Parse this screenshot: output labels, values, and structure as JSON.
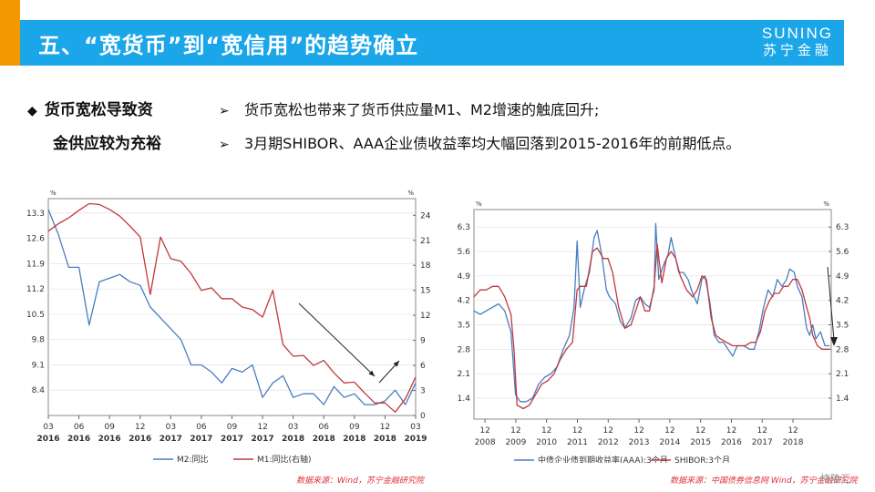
{
  "header": {
    "title": "五、“宽货币”到“宽信用”的趋势确立",
    "logo_en": "SUNING",
    "logo_cn": "苏宁金融"
  },
  "section": {
    "bullet": "◆",
    "title_line1": "货币宽松导致资",
    "title_line2": "金供应较为充裕"
  },
  "bullets": [
    {
      "arrow": "➢",
      "text": "货币宽松也带来了货币供应量M1、M2增速的触底回升;"
    },
    {
      "arrow": "➢",
      "text": "3月期SHIBOR、AAA企业债收益率均大幅回落到2015-2016年的前期低点。"
    }
  ],
  "chart_data": [
    {
      "type": "line",
      "x": [
        "03 2016",
        "04 2016",
        "05 2016",
        "06 2016",
        "07 2016",
        "08 2016",
        "09 2016",
        "10 2016",
        "11 2016",
        "12 2016",
        "01 2017",
        "02 2017",
        "03 2017",
        "04 2017",
        "05 2017",
        "06 2017",
        "07 2017",
        "08 2017",
        "09 2017",
        "10 2017",
        "11 2017",
        "12 2017",
        "01 2018",
        "02 2018",
        "03 2018",
        "04 2018",
        "05 2018",
        "06 2018",
        "07 2018",
        "08 2018",
        "09 2018",
        "10 2018",
        "11 2018",
        "12 2018",
        "01 2019",
        "02 2019",
        "03 2019"
      ],
      "x_tick_labels": [
        [
          "03",
          "2016"
        ],
        [
          "06",
          "2016"
        ],
        [
          "09",
          "2016"
        ],
        [
          "12",
          "2016"
        ],
        [
          "03",
          "2017"
        ],
        [
          "06",
          "2017"
        ],
        [
          "09",
          "2017"
        ],
        [
          "12",
          "2017"
        ],
        [
          "03",
          "2018"
        ],
        [
          "06",
          "2018"
        ],
        [
          "09",
          "2018"
        ],
        [
          "12",
          "2018"
        ],
        [
          "03",
          "2019"
        ]
      ],
      "series": [
        {
          "name": "M2:同比",
          "axis": "left",
          "color": "#4a7dc0",
          "values": [
            13.4,
            12.7,
            11.8,
            11.8,
            10.2,
            11.4,
            11.5,
            11.6,
            11.4,
            11.3,
            10.7,
            10.4,
            10.1,
            9.8,
            9.1,
            9.1,
            8.9,
            8.6,
            9.0,
            8.9,
            9.1,
            8.2,
            8.6,
            8.8,
            8.2,
            8.3,
            8.3,
            8.0,
            8.5,
            8.2,
            8.3,
            8.0,
            8.0,
            8.1,
            8.4,
            8.0,
            8.6
          ]
        },
        {
          "name": "M1:同比(右轴)",
          "axis": "right",
          "color": "#c0383a",
          "values": [
            22.1,
            23.0,
            23.7,
            24.6,
            25.4,
            25.3,
            24.7,
            23.9,
            22.7,
            21.4,
            14.5,
            21.4,
            18.8,
            18.5,
            17.0,
            15.0,
            15.3,
            14.0,
            14.0,
            13.0,
            12.7,
            11.8,
            15.0,
            8.5,
            7.1,
            7.2,
            6.0,
            6.6,
            5.1,
            3.9,
            4.0,
            2.7,
            1.5,
            1.5,
            0.4,
            2.0,
            4.6
          ]
        }
      ],
      "y_left": {
        "unit": "%",
        "ticks": [
          8.4,
          9.1,
          9.8,
          10.5,
          11.2,
          11.9,
          12.6,
          13.3
        ],
        "range": [
          7.7,
          13.7
        ]
      },
      "y_right": {
        "unit": "%",
        "ticks": [
          0,
          3,
          6,
          9,
          12,
          15,
          18,
          21,
          24
        ],
        "range": [
          0,
          26
        ]
      },
      "source": "数据来源：Wind，苏宁金融研究院"
    },
    {
      "type": "line",
      "x_range": [
        2007.6,
        2019.2
      ],
      "x_tick_labels": [
        [
          "12",
          "2008"
        ],
        [
          "12",
          "2009"
        ],
        [
          "12",
          "2010"
        ],
        [
          "12",
          "2011"
        ],
        [
          "12",
          "2012"
        ],
        [
          "12",
          "2013"
        ],
        [
          "12",
          "2014"
        ],
        [
          "12",
          "2015"
        ],
        [
          "12",
          "2016"
        ],
        [
          "12",
          "2017"
        ],
        [
          "12",
          "2018"
        ]
      ],
      "series": [
        {
          "name": "中债企业债到期收益率(AAA):3个月",
          "color": "#4a7dc0",
          "points": [
            [
              2007.6,
              3.9
            ],
            [
              2007.8,
              3.8
            ],
            [
              2008.0,
              3.9
            ],
            [
              2008.2,
              4.0
            ],
            [
              2008.4,
              4.1
            ],
            [
              2008.6,
              3.9
            ],
            [
              2008.8,
              3.3
            ],
            [
              2008.95,
              1.5
            ],
            [
              2009.1,
              1.3
            ],
            [
              2009.3,
              1.3
            ],
            [
              2009.5,
              1.4
            ],
            [
              2009.7,
              1.8
            ],
            [
              2009.9,
              2.0
            ],
            [
              2010.1,
              2.1
            ],
            [
              2010.3,
              2.3
            ],
            [
              2010.5,
              2.8
            ],
            [
              2010.7,
              3.2
            ],
            [
              2010.85,
              4.0
            ],
            [
              2010.95,
              5.9
            ],
            [
              2011.05,
              4.0
            ],
            [
              2011.2,
              4.6
            ],
            [
              2011.35,
              5.0
            ],
            [
              2011.5,
              6.0
            ],
            [
              2011.6,
              6.2
            ],
            [
              2011.75,
              5.5
            ],
            [
              2011.9,
              4.5
            ],
            [
              2012.0,
              4.3
            ],
            [
              2012.2,
              4.1
            ],
            [
              2012.35,
              3.6
            ],
            [
              2012.5,
              3.4
            ],
            [
              2012.7,
              3.7
            ],
            [
              2012.85,
              4.2
            ],
            [
              2013.0,
              4.3
            ],
            [
              2013.15,
              4.1
            ],
            [
              2013.3,
              4.0
            ],
            [
              2013.45,
              4.5
            ],
            [
              2013.5,
              6.4
            ],
            [
              2013.6,
              4.8
            ],
            [
              2013.75,
              5.2
            ],
            [
              2013.9,
              5.5
            ],
            [
              2014.0,
              6.0
            ],
            [
              2014.1,
              5.6
            ],
            [
              2014.25,
              5.0
            ],
            [
              2014.4,
              5.0
            ],
            [
              2014.55,
              4.8
            ],
            [
              2014.7,
              4.4
            ],
            [
              2014.85,
              4.1
            ],
            [
              2015.0,
              4.8
            ],
            [
              2015.1,
              4.9
            ],
            [
              2015.25,
              4.2
            ],
            [
              2015.4,
              3.2
            ],
            [
              2015.55,
              3.0
            ],
            [
              2015.7,
              3.0
            ],
            [
              2015.85,
              2.8
            ],
            [
              2016.0,
              2.6
            ],
            [
              2016.15,
              2.9
            ],
            [
              2016.35,
              2.9
            ],
            [
              2016.55,
              2.8
            ],
            [
              2016.7,
              2.8
            ],
            [
              2016.85,
              3.3
            ],
            [
              2017.0,
              4.0
            ],
            [
              2017.15,
              4.5
            ],
            [
              2017.3,
              4.3
            ],
            [
              2017.45,
              4.8
            ],
            [
              2017.6,
              4.6
            ],
            [
              2017.75,
              4.8
            ],
            [
              2017.85,
              5.1
            ],
            [
              2018.0,
              5.0
            ],
            [
              2018.1,
              4.6
            ],
            [
              2018.25,
              4.3
            ],
            [
              2018.4,
              3.4
            ],
            [
              2018.5,
              3.2
            ],
            [
              2018.6,
              3.5
            ],
            [
              2018.7,
              3.1
            ],
            [
              2018.85,
              3.3
            ],
            [
              2019.0,
              2.9
            ],
            [
              2019.15,
              2.9
            ]
          ]
        },
        {
          "name": "SHIBOR:3个月",
          "color": "#c0383a",
          "points": [
            [
              2007.6,
              4.3
            ],
            [
              2007.8,
              4.5
            ],
            [
              2008.0,
              4.5
            ],
            [
              2008.2,
              4.6
            ],
            [
              2008.4,
              4.6
            ],
            [
              2008.6,
              4.3
            ],
            [
              2008.8,
              3.8
            ],
            [
              2008.9,
              2.8
            ],
            [
              2009.0,
              1.2
            ],
            [
              2009.2,
              1.1
            ],
            [
              2009.4,
              1.2
            ],
            [
              2009.6,
              1.5
            ],
            [
              2009.8,
              1.8
            ],
            [
              2010.0,
              1.9
            ],
            [
              2010.2,
              2.1
            ],
            [
              2010.4,
              2.5
            ],
            [
              2010.6,
              2.8
            ],
            [
              2010.8,
              3.0
            ],
            [
              2010.95,
              4.5
            ],
            [
              2011.05,
              4.6
            ],
            [
              2011.25,
              4.6
            ],
            [
              2011.45,
              5.6
            ],
            [
              2011.6,
              5.7
            ],
            [
              2011.8,
              5.4
            ],
            [
              2011.95,
              5.4
            ],
            [
              2012.1,
              5.0
            ],
            [
              2012.3,
              4.0
            ],
            [
              2012.5,
              3.4
            ],
            [
              2012.7,
              3.5
            ],
            [
              2012.85,
              3.9
            ],
            [
              2013.0,
              4.3
            ],
            [
              2013.15,
              3.9
            ],
            [
              2013.3,
              3.9
            ],
            [
              2013.45,
              4.6
            ],
            [
              2013.55,
              5.8
            ],
            [
              2013.7,
              4.7
            ],
            [
              2013.85,
              5.4
            ],
            [
              2014.0,
              5.6
            ],
            [
              2014.15,
              5.4
            ],
            [
              2014.3,
              4.9
            ],
            [
              2014.5,
              4.5
            ],
            [
              2014.7,
              4.3
            ],
            [
              2014.85,
              4.5
            ],
            [
              2015.0,
              4.9
            ],
            [
              2015.15,
              4.8
            ],
            [
              2015.3,
              3.7
            ],
            [
              2015.45,
              3.2
            ],
            [
              2015.6,
              3.1
            ],
            [
              2015.8,
              3.0
            ],
            [
              2016.0,
              2.9
            ],
            [
              2016.2,
              2.9
            ],
            [
              2016.4,
              2.9
            ],
            [
              2016.6,
              3.0
            ],
            [
              2016.75,
              3.0
            ],
            [
              2016.9,
              3.3
            ],
            [
              2017.05,
              3.9
            ],
            [
              2017.2,
              4.2
            ],
            [
              2017.35,
              4.4
            ],
            [
              2017.5,
              4.4
            ],
            [
              2017.65,
              4.6
            ],
            [
              2017.8,
              4.6
            ],
            [
              2017.95,
              4.8
            ],
            [
              2018.1,
              4.8
            ],
            [
              2018.25,
              4.5
            ],
            [
              2018.4,
              4.0
            ],
            [
              2018.5,
              3.7
            ],
            [
              2018.6,
              3.2
            ],
            [
              2018.75,
              2.9
            ],
            [
              2018.9,
              2.8
            ],
            [
              2019.0,
              2.8
            ],
            [
              2019.15,
              2.8
            ]
          ]
        }
      ],
      "y_left": {
        "unit": "%",
        "ticks": [
          1.4,
          2.1,
          2.8,
          3.5,
          4.2,
          4.9,
          5.6,
          6.3
        ],
        "range": [
          0.8,
          6.8
        ]
      },
      "y_right": {
        "unit": "%",
        "ticks": [
          1.4,
          2.1,
          2.8,
          3.5,
          4.2,
          4.9,
          5.6,
          6.3
        ],
        "range": [
          0.8,
          6.8
        ]
      },
      "source": "数据来源：中国债券信息网 Wind，苏宁金融研究院"
    }
  ],
  "watermark": "格隆汇"
}
